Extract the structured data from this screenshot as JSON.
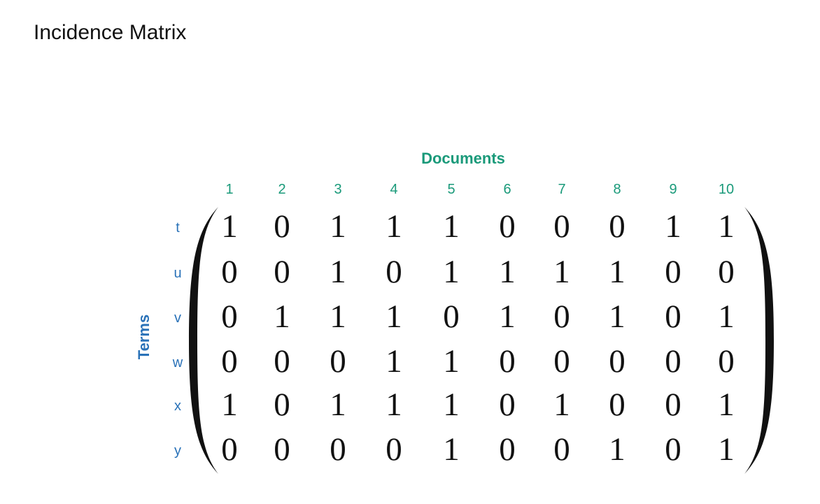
{
  "title": "Incidence Matrix",
  "colors": {
    "documents_accent": "#1a9a7a",
    "terms_accent": "#2a72b8",
    "matrix_text": "#111111"
  },
  "columns_title": "Documents",
  "rows_title": "Terms",
  "column_labels": [
    "1",
    "2",
    "3",
    "4",
    "5",
    "6",
    "7",
    "8",
    "9",
    "10"
  ],
  "row_labels": [
    "t",
    "u",
    "v",
    "w",
    "x",
    "y"
  ],
  "matrix": [
    [
      1,
      0,
      1,
      1,
      1,
      0,
      0,
      0,
      1,
      1
    ],
    [
      0,
      0,
      1,
      0,
      1,
      1,
      1,
      1,
      0,
      0
    ],
    [
      0,
      1,
      1,
      1,
      0,
      1,
      0,
      1,
      0,
      1
    ],
    [
      0,
      0,
      0,
      1,
      1,
      0,
      0,
      0,
      0,
      0
    ],
    [
      1,
      0,
      1,
      1,
      1,
      0,
      1,
      0,
      0,
      1
    ],
    [
      0,
      0,
      0,
      0,
      1,
      0,
      0,
      1,
      0,
      1
    ]
  ]
}
